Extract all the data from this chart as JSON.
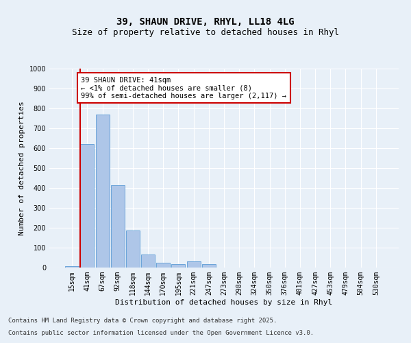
{
  "title_line1": "39, SHAUN DRIVE, RHYL, LL18 4LG",
  "title_line2": "Size of property relative to detached houses in Rhyl",
  "xlabel": "Distribution of detached houses by size in Rhyl",
  "ylabel": "Number of detached properties",
  "categories": [
    "15sqm",
    "41sqm",
    "67sqm",
    "92sqm",
    "118sqm",
    "144sqm",
    "170sqm",
    "195sqm",
    "221sqm",
    "247sqm",
    "273sqm",
    "298sqm",
    "324sqm",
    "350sqm",
    "376sqm",
    "401sqm",
    "427sqm",
    "453sqm",
    "479sqm",
    "504sqm",
    "530sqm"
  ],
  "values": [
    8,
    620,
    770,
    415,
    185,
    65,
    25,
    18,
    30,
    18,
    0,
    0,
    0,
    0,
    0,
    0,
    0,
    0,
    0,
    0,
    0
  ],
  "bar_color": "#aec6e8",
  "bar_edge_color": "#5b9bd5",
  "vline_color": "#cc0000",
  "annotation_text": "39 SHAUN DRIVE: 41sqm\n← <1% of detached houses are smaller (8)\n99% of semi-detached houses are larger (2,117) →",
  "annotation_bbox_color": "white",
  "annotation_bbox_edge": "#cc0000",
  "ylim": [
    0,
    1000
  ],
  "yticks": [
    0,
    100,
    200,
    300,
    400,
    500,
    600,
    700,
    800,
    900,
    1000
  ],
  "background_color": "#e8f0f8",
  "plot_bg_color": "#e8f0f8",
  "grid_color": "white",
  "footer_line1": "Contains HM Land Registry data © Crown copyright and database right 2025.",
  "footer_line2": "Contains public sector information licensed under the Open Government Licence v3.0.",
  "title_fontsize": 10,
  "subtitle_fontsize": 9,
  "axis_label_fontsize": 8,
  "tick_fontsize": 7,
  "annotation_fontsize": 7.5,
  "footer_fontsize": 6.5
}
